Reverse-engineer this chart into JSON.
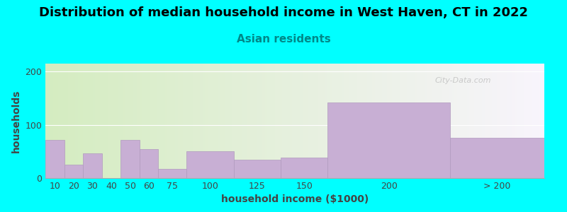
{
  "title": "Distribution of median household income in West Haven, CT in 2022",
  "subtitle": "Asian residents",
  "xlabel": "household income ($1000)",
  "ylabel": "households",
  "bar_labels": [
    "10",
    "20",
    "30",
    "40",
    "50",
    "60",
    "75",
    "100",
    "125",
    "150",
    "200",
    "> 200"
  ],
  "bar_heights": [
    72,
    25,
    47,
    0,
    72,
    55,
    17,
    50,
    35,
    38,
    142,
    75
  ],
  "bar_color": "#c8afd4",
  "bar_edge_color": "#b09abe",
  "background_color": "#00ffff",
  "plot_bg_left": "#d4ecc0",
  "plot_bg_right": "#f5f0f8",
  "ylim": [
    0,
    215
  ],
  "yticks": [
    0,
    100,
    200
  ],
  "title_fontsize": 13,
  "subtitle_fontsize": 11,
  "subtitle_color": "#008888",
  "axis_label_fontsize": 10,
  "tick_fontsize": 9,
  "watermark": "City-Data.com"
}
